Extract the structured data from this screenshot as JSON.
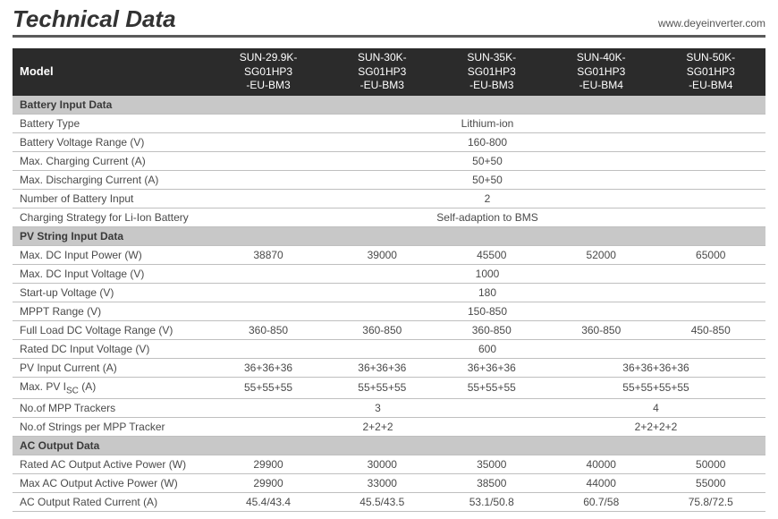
{
  "header": {
    "title": "Technical Data",
    "url": "www.deyeinverter.com"
  },
  "table": {
    "model_label": "Model",
    "columns": [
      "SUN-29.9K-SG01HP3\n-EU-BM3",
      "SUN-30K-SG01HP3\n-EU-BM3",
      "SUN-35K-SG01HP3\n-EU-BM3",
      "SUN-40K-SG01HP3\n-EU-BM4",
      "SUN-50K-SG01HP3\n-EU-BM4"
    ],
    "sections": {
      "battery": "Battery Input Data",
      "pv": "PV String Input Data",
      "ac": "AC Output Data"
    },
    "rows": {
      "battery_type": {
        "label": "Battery Type",
        "span": "Lithium-ion"
      },
      "battery_voltage": {
        "label": "Battery Voltage Range (V)",
        "span": "160-800"
      },
      "max_charging": {
        "label": "Max. Charging Current (A)",
        "span": "50+50"
      },
      "max_discharging": {
        "label": "Max. Discharging Current (A)",
        "span": "50+50"
      },
      "num_battery_input": {
        "label": "Number of Battery Input",
        "span": "2"
      },
      "charging_strategy": {
        "label": "Charging Strategy for Li-Ion Battery",
        "span": "Self-adaption to BMS"
      },
      "max_dc_power": {
        "label": "Max. DC Input Power (W)",
        "cells": [
          "38870",
          "39000",
          "45500",
          "52000",
          "65000"
        ]
      },
      "max_dc_voltage": {
        "label": "Max. DC Input Voltage (V)",
        "span": "1000"
      },
      "startup_voltage": {
        "label": "Start-up Voltage (V)",
        "span": "180"
      },
      "mppt_range": {
        "label": "MPPT Range (V)",
        "span": "150-850"
      },
      "full_load_dc": {
        "label": "Full Load DC Voltage Range (V)",
        "cells": [
          "360-850",
          "360-850",
          "360-850",
          "360-850",
          "450-850"
        ]
      },
      "rated_dc_voltage": {
        "label": "Rated DC Input Voltage (V)",
        "span": "600"
      },
      "pv_input_current": {
        "label": "PV Input Current (A)",
        "groups": [
          "36+36+36",
          "36+36+36",
          "36+36+36",
          "36+36+36+36"
        ],
        "spans": [
          1,
          1,
          1,
          2
        ]
      },
      "max_pv_isc": {
        "label_pre": "Max. PV I",
        "label_sub": "SC",
        "label_post": " (A)",
        "groups": [
          "55+55+55",
          "55+55+55",
          "55+55+55",
          "55+55+55+55"
        ],
        "spans": [
          1,
          1,
          1,
          2
        ]
      },
      "num_mpp_trackers": {
        "label": "No.of MPP Trackers",
        "groups": [
          "3",
          "4"
        ],
        "spans": [
          3,
          2
        ]
      },
      "strings_per_mpp": {
        "label": "No.of Strings per MPP Tracker",
        "groups": [
          "2+2+2",
          "2+2+2+2"
        ],
        "spans": [
          3,
          2
        ]
      },
      "rated_ac_active": {
        "label": "Rated AC Output Active Power (W)",
        "cells": [
          "29900",
          "30000",
          "35000",
          "40000",
          "50000"
        ]
      },
      "max_ac_active": {
        "label": "Max AC Output Active Power (W)",
        "cells": [
          "29900",
          "33000",
          "38500",
          "44000",
          "55000"
        ]
      },
      "ac_rated_current": {
        "label": "AC Output Rated Current (A)",
        "cells": [
          "45.4/43.4",
          "45.5/43.5",
          "53.1/50.8",
          "60.7/58",
          "75.8/72.5"
        ]
      }
    }
  }
}
